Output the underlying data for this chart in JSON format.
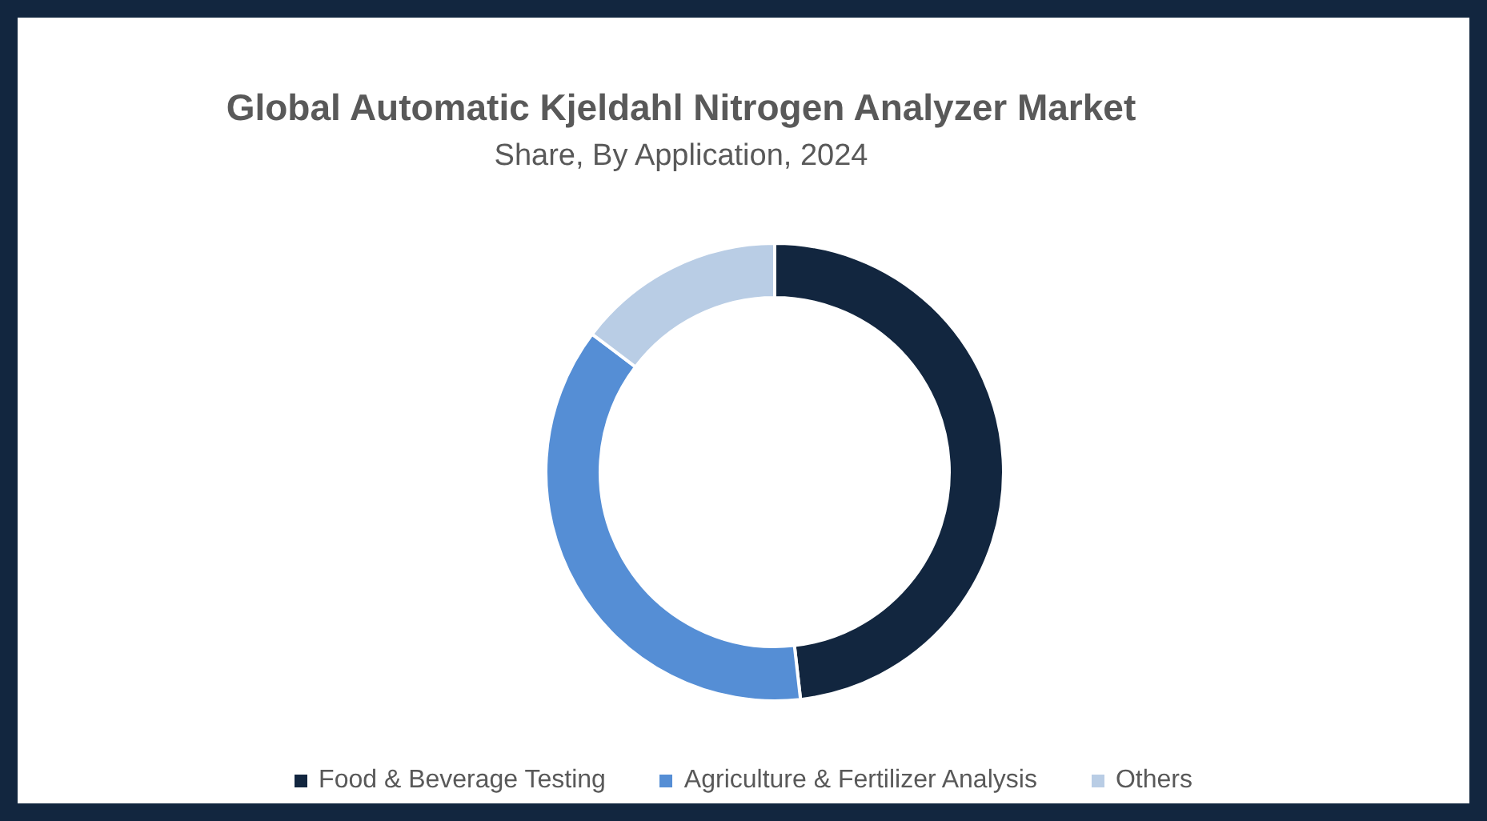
{
  "chart_data": {
    "type": "donut",
    "title": "Global Automatic Kjeldahl Nitrogen Analyzer Market",
    "subtitle": "Share, By Application, 2024",
    "categories": [
      "Food & Beverage Testing",
      "Agriculture & Fertilizer Analysis",
      "Others"
    ],
    "values": [
      48.2,
      37.1,
      14.7
    ],
    "colors": [
      "#12263f",
      "#558ed5",
      "#b9cde5"
    ],
    "legend": "bottom"
  }
}
